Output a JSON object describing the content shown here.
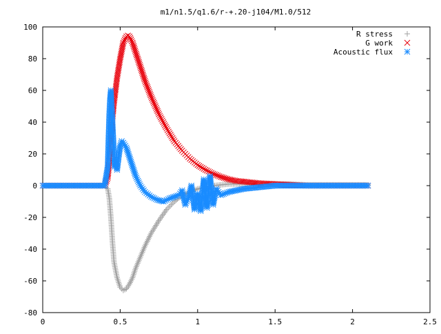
{
  "chart_data": {
    "type": "scatter",
    "title": "m1/n1.5/q1.6/r-+.20-j104/M1.0/512",
    "xlabel": "",
    "ylabel": "",
    "xlim": [
      0,
      2.5
    ],
    "ylim": [
      -80,
      100
    ],
    "x_ticks": [
      0,
      0.5,
      1,
      1.5,
      2,
      2.5
    ],
    "x_tick_labels": [
      "0",
      "0.5",
      "1",
      "1.5",
      "2",
      "2.5"
    ],
    "y_ticks": [
      -80,
      -60,
      -40,
      -20,
      0,
      20,
      40,
      60,
      80,
      100
    ],
    "y_tick_labels": [
      "-80",
      "-60",
      "-40",
      "-20",
      "0",
      "20",
      "40",
      "60",
      "80",
      "100"
    ],
    "grid": false,
    "legend_placement": "top-right",
    "series": [
      {
        "name": "R stress",
        "marker": "plus",
        "color": "#a0a0a0",
        "x": [
          0,
          0.1,
          0.2,
          0.3,
          0.4,
          0.42,
          0.43,
          0.44,
          0.45,
          0.46,
          0.48,
          0.5,
          0.52,
          0.54,
          0.56,
          0.58,
          0.6,
          0.63,
          0.66,
          0.7,
          0.75,
          0.8,
          0.85,
          0.9,
          0.95,
          1.0,
          1.05,
          1.1,
          1.15,
          1.2,
          1.25,
          1.3,
          1.4,
          1.5,
          1.6,
          1.7,
          1.8,
          1.9,
          2.0,
          2.1
        ],
        "y": [
          0,
          0,
          0,
          0,
          0,
          -2,
          -8,
          -20,
          -35,
          -48,
          -58,
          -64,
          -66,
          -65,
          -62,
          -58,
          -52,
          -45,
          -38,
          -30,
          -22,
          -15,
          -10,
          -6,
          -4,
          -2,
          -1,
          0,
          0.5,
          1,
          1,
          1,
          1,
          1,
          1,
          0.5,
          0.5,
          0.5,
          0.5,
          0.5
        ]
      },
      {
        "name": "G work",
        "marker": "cross",
        "color": "#e8000b",
        "x": [
          0,
          0.1,
          0.2,
          0.3,
          0.4,
          0.42,
          0.43,
          0.44,
          0.45,
          0.46,
          0.48,
          0.5,
          0.52,
          0.54,
          0.55,
          0.56,
          0.58,
          0.6,
          0.63,
          0.66,
          0.7,
          0.75,
          0.8,
          0.85,
          0.9,
          0.95,
          1.0,
          1.05,
          1.1,
          1.15,
          1.2,
          1.25,
          1.3,
          1.4,
          1.5,
          1.6,
          1.7,
          1.8,
          1.9,
          2.0,
          2.1
        ],
        "y": [
          0,
          0,
          0,
          0,
          0,
          5,
          15,
          28,
          42,
          52,
          68,
          80,
          90,
          94,
          94.5,
          94,
          90,
          84,
          75,
          66,
          56,
          45,
          36,
          28,
          22,
          17,
          13,
          10,
          7.5,
          5.5,
          4,
          3,
          2.5,
          1.5,
          1,
          0.5,
          0,
          0,
          0,
          0,
          0
        ]
      },
      {
        "name": "Acoustic flux",
        "marker": "star",
        "color": "#1a8cff",
        "x": [
          0,
          0.1,
          0.2,
          0.3,
          0.4,
          0.42,
          0.425,
          0.43,
          0.435,
          0.44,
          0.445,
          0.45,
          0.455,
          0.46,
          0.465,
          0.47,
          0.48,
          0.49,
          0.5,
          0.51,
          0.52,
          0.54,
          0.56,
          0.58,
          0.6,
          0.63,
          0.66,
          0.7,
          0.74,
          0.78,
          0.82,
          0.85,
          0.88,
          0.9,
          0.92,
          0.94,
          0.96,
          0.98,
          1.0,
          1.02,
          1.04,
          1.06,
          1.08,
          1.1,
          1.12,
          1.15,
          1.2,
          1.3,
          1.4,
          1.5,
          1.6,
          1.7,
          1.8,
          1.9,
          2.0,
          2.1
        ],
        "y": [
          0,
          0,
          0,
          0,
          0,
          12,
          30,
          45,
          55,
          60,
          50,
          40,
          30,
          20,
          12,
          15,
          10,
          18,
          25,
          28,
          27,
          24,
          18,
          12,
          6,
          0,
          -4,
          -7,
          -9,
          -10,
          -8,
          -7,
          -6,
          -3,
          -12,
          -8,
          0,
          -15,
          -5,
          -16,
          4,
          -14,
          6,
          -12,
          -2,
          -6,
          -4,
          -2,
          -1,
          0,
          0,
          0,
          0,
          0,
          0,
          0
        ]
      }
    ]
  }
}
